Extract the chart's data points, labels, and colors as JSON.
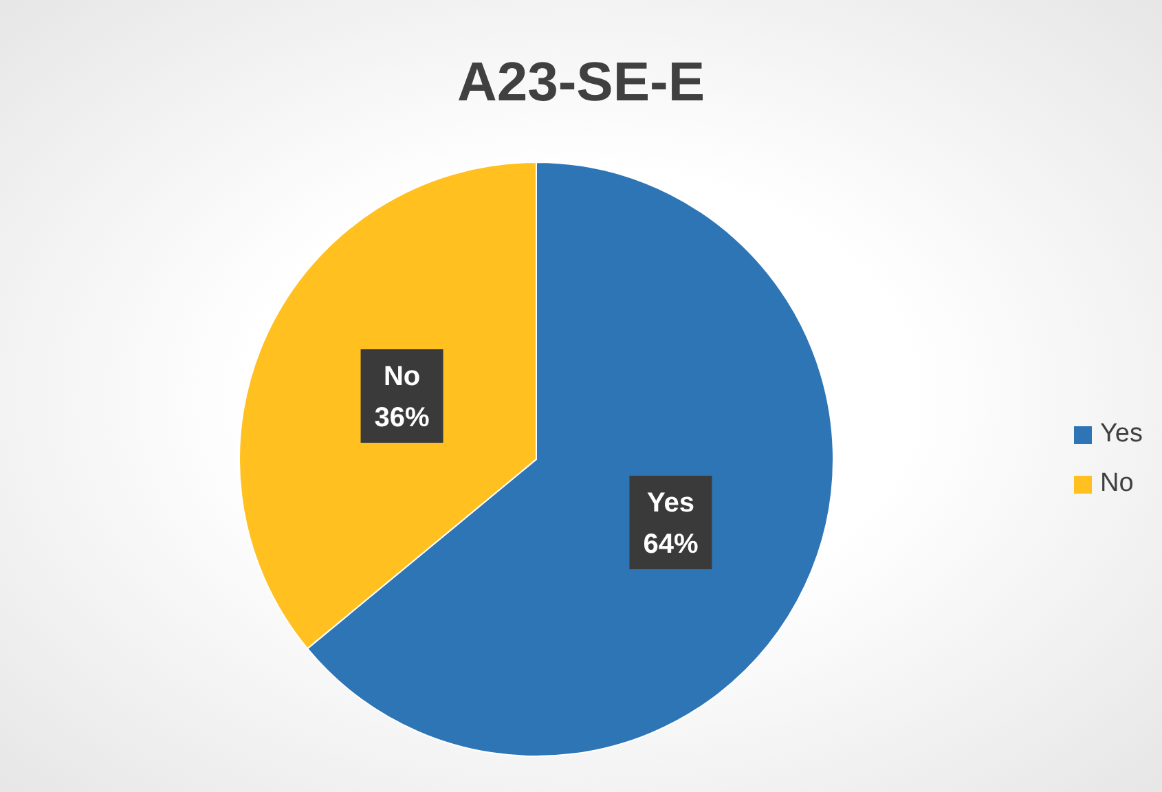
{
  "chart_data": {
    "type": "pie",
    "title": "A23-SE-E",
    "categories": [
      "Yes",
      "No"
    ],
    "values": [
      64,
      36
    ],
    "colors": [
      "#2e75b6",
      "#ffc020"
    ],
    "value_labels": [
      "64%",
      "36%"
    ],
    "legend": "right"
  }
}
